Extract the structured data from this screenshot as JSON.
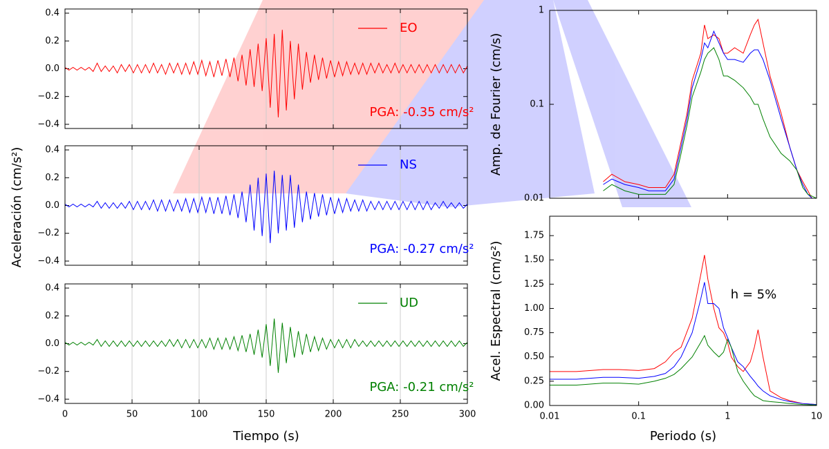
{
  "chart_data": [
    {
      "type": "line",
      "xlabel": "Tiempo (s)",
      "ylabel": "Aceleración (cm/s²)",
      "x": [
        0,
        3,
        6,
        9,
        12,
        15,
        18,
        21,
        24,
        27,
        30,
        33,
        36,
        39,
        42,
        45,
        48,
        51,
        54,
        57,
        60,
        63,
        66,
        69,
        72,
        75,
        78,
        81,
        84,
        87,
        90,
        93,
        96,
        99,
        102,
        105,
        108,
        111,
        114,
        117,
        120,
        123,
        126,
        129,
        132,
        135,
        138,
        141,
        144,
        147,
        150,
        153,
        156,
        159,
        162,
        165,
        168,
        171,
        174,
        177,
        180,
        183,
        186,
        189,
        192,
        195,
        198,
        201,
        204,
        207,
        210,
        213,
        216,
        219,
        222,
        225,
        228,
        231,
        234,
        237,
        240,
        243,
        246,
        249,
        252,
        255,
        258,
        261,
        264,
        267,
        270,
        273,
        276,
        279,
        282,
        285,
        288,
        291,
        294,
        297,
        300
      ],
      "xlim": [
        0,
        300
      ],
      "xticks": [
        0,
        50,
        100,
        150,
        200,
        250,
        300
      ],
      "grid": true,
      "ylim": [
        -0.43,
        0.43
      ],
      "yticks": [
        {
          "value": -0.4,
          "label": "−0.4"
        },
        {
          "value": -0.2,
          "label": "−0.2"
        },
        {
          "value": 0,
          "label": "0.0"
        },
        {
          "value": 0.2,
          "label": "0.2"
        },
        {
          "value": 0.4,
          "label": "0.4"
        }
      ],
      "series": [
        {
          "name": "EO",
          "color": "#ff0000",
          "annotation": "PGA: -0.35 cm/s²",
          "values": [
            0.01,
            -0.01,
            0.01,
            -0.01,
            0.01,
            -0.01,
            0.01,
            -0.02,
            0.04,
            -0.02,
            0.02,
            -0.02,
            0.02,
            -0.03,
            0.03,
            -0.02,
            0.03,
            -0.03,
            0.03,
            -0.03,
            0.03,
            -0.03,
            0.04,
            -0.03,
            0.03,
            -0.04,
            0.04,
            -0.03,
            0.04,
            -0.04,
            0.04,
            -0.04,
            0.05,
            -0.04,
            0.06,
            -0.05,
            0.05,
            -0.06,
            0.06,
            -0.05,
            0.07,
            -0.06,
            0.08,
            -0.09,
            0.1,
            -0.12,
            0.14,
            -0.13,
            0.18,
            -0.16,
            0.22,
            -0.28,
            0.25,
            -0.35,
            0.28,
            -0.3,
            0.2,
            -0.22,
            0.18,
            -0.15,
            0.12,
            -0.1,
            0.1,
            -0.08,
            0.08,
            -0.07,
            0.06,
            -0.06,
            0.05,
            -0.05,
            0.05,
            -0.04,
            0.04,
            -0.04,
            0.04,
            -0.04,
            0.04,
            -0.03,
            0.04,
            -0.03,
            0.03,
            -0.03,
            0.04,
            -0.03,
            0.03,
            -0.03,
            0.03,
            -0.03,
            0.03,
            -0.03,
            0.03,
            -0.03,
            0.03,
            -0.03,
            0.03,
            -0.03,
            0.03,
            -0.03,
            0.03,
            -0.03,
            0.02
          ]
        },
        {
          "name": "NS",
          "color": "#0000ff",
          "annotation": "PGA: -0.27 cm/s²",
          "values": [
            0.01,
            -0.01,
            0.01,
            -0.01,
            0.01,
            -0.01,
            0.01,
            -0.01,
            0.03,
            -0.02,
            0.02,
            -0.02,
            0.02,
            -0.02,
            0.02,
            -0.02,
            0.03,
            -0.03,
            0.03,
            -0.03,
            0.03,
            -0.03,
            0.04,
            -0.04,
            0.04,
            -0.04,
            0.04,
            -0.04,
            0.04,
            -0.04,
            0.05,
            -0.05,
            0.05,
            -0.05,
            0.06,
            -0.05,
            0.06,
            -0.06,
            0.06,
            -0.06,
            0.07,
            -0.07,
            0.08,
            -0.09,
            0.1,
            -0.12,
            0.15,
            -0.18,
            0.2,
            -0.22,
            0.23,
            -0.27,
            0.25,
            -0.2,
            0.22,
            -0.18,
            0.22,
            -0.16,
            0.15,
            -0.12,
            0.1,
            -0.1,
            0.09,
            -0.08,
            0.08,
            -0.07,
            0.06,
            -0.06,
            0.05,
            -0.05,
            0.05,
            -0.04,
            0.04,
            -0.04,
            0.04,
            -0.04,
            0.03,
            -0.03,
            0.03,
            -0.03,
            0.03,
            -0.03,
            0.03,
            -0.03,
            0.03,
            -0.03,
            0.03,
            -0.03,
            0.03,
            -0.03,
            0.03,
            -0.03,
            0.02,
            -0.02,
            0.03,
            -0.02,
            0.02,
            -0.02,
            0.02,
            -0.02,
            0.01
          ]
        },
        {
          "name": "UD",
          "color": "#008000",
          "annotation": "PGA: -0.21 cm/s²",
          "values": [
            0.01,
            -0.01,
            0.01,
            -0.01,
            0.01,
            -0.01,
            0.01,
            -0.01,
            0.03,
            -0.02,
            0.02,
            -0.02,
            0.02,
            -0.02,
            0.02,
            -0.02,
            0.02,
            -0.02,
            0.02,
            -0.02,
            0.02,
            -0.02,
            0.02,
            -0.02,
            0.02,
            -0.02,
            0.03,
            -0.02,
            0.03,
            -0.03,
            0.03,
            -0.03,
            0.03,
            -0.03,
            0.03,
            -0.03,
            0.04,
            -0.04,
            0.04,
            -0.04,
            0.04,
            -0.04,
            0.05,
            -0.05,
            0.06,
            -0.06,
            0.07,
            -0.08,
            0.1,
            -0.1,
            0.14,
            -0.16,
            0.18,
            -0.21,
            0.15,
            -0.14,
            0.12,
            -0.1,
            0.09,
            -0.08,
            0.07,
            -0.06,
            0.05,
            -0.05,
            0.04,
            -0.04,
            0.03,
            -0.03,
            0.03,
            -0.03,
            0.03,
            -0.03,
            0.03,
            -0.02,
            0.02,
            -0.02,
            0.02,
            -0.02,
            0.02,
            -0.02,
            0.02,
            -0.02,
            0.02,
            -0.02,
            0.02,
            -0.02,
            0.02,
            -0.02,
            0.02,
            -0.02,
            0.02,
            -0.02,
            0.02,
            -0.02,
            0.02,
            -0.02,
            0.02,
            -0.02,
            0.02,
            -0.02,
            0.01
          ]
        }
      ]
    },
    {
      "type": "line",
      "ylabel": "Amp. de Fourier (cm/s)",
      "xlog": true,
      "ylog": true,
      "x": [
        0.04,
        0.05,
        0.07,
        0.1,
        0.13,
        0.16,
        0.2,
        0.25,
        0.3,
        0.35,
        0.4,
        0.5,
        0.55,
        0.6,
        0.7,
        0.8,
        0.9,
        1,
        1.2,
        1.5,
        1.8,
        2,
        2.2,
        2.5,
        3,
        4,
        5,
        6,
        7,
        8,
        10
      ],
      "xlim": [
        0.01,
        10
      ],
      "xticks": [
        0.01,
        0.1,
        1,
        10
      ],
      "ylim": [
        0.01,
        1
      ],
      "yticks": [
        0.01,
        0.1,
        1
      ],
      "series": [
        {
          "color": "#ff0000",
          "values": [
            0.015,
            0.018,
            0.015,
            0.014,
            0.013,
            0.013,
            0.013,
            0.018,
            0.04,
            0.08,
            0.18,
            0.35,
            0.7,
            0.5,
            0.55,
            0.5,
            0.35,
            0.35,
            0.4,
            0.35,
            0.55,
            0.7,
            0.8,
            0.45,
            0.2,
            0.08,
            0.035,
            0.02,
            0.015,
            0.012,
            0.008
          ]
        },
        {
          "color": "#0000ff",
          "values": [
            0.014,
            0.016,
            0.014,
            0.013,
            0.012,
            0.012,
            0.012,
            0.016,
            0.035,
            0.07,
            0.15,
            0.3,
            0.45,
            0.4,
            0.6,
            0.45,
            0.35,
            0.3,
            0.3,
            0.28,
            0.35,
            0.38,
            0.38,
            0.3,
            0.18,
            0.07,
            0.035,
            0.02,
            0.014,
            0.011,
            0.009
          ]
        },
        {
          "color": "#008000",
          "values": [
            0.012,
            0.014,
            0.012,
            0.011,
            0.011,
            0.011,
            0.011,
            0.014,
            0.03,
            0.06,
            0.12,
            0.22,
            0.3,
            0.35,
            0.4,
            0.3,
            0.2,
            0.2,
            0.18,
            0.15,
            0.12,
            0.1,
            0.1,
            0.07,
            0.045,
            0.03,
            0.025,
            0.02,
            0.013,
            0.011,
            0.01
          ]
        }
      ]
    },
    {
      "type": "line",
      "xlabel": "Periodo (s)",
      "ylabel": "Acel. Espectral (cm/s²)",
      "annotation": "h = 5%",
      "xlog": true,
      "x": [
        0.01,
        0.02,
        0.04,
        0.06,
        0.1,
        0.15,
        0.2,
        0.25,
        0.3,
        0.4,
        0.5,
        0.55,
        0.6,
        0.7,
        0.8,
        0.9,
        1,
        1.1,
        1.3,
        1.5,
        1.8,
        2,
        2.2,
        2.5,
        3,
        4,
        5,
        7,
        10
      ],
      "xlim": [
        0.01,
        10
      ],
      "xticks": [
        0.01,
        0.1,
        1,
        10
      ],
      "ylim": [
        0,
        1.95
      ],
      "yticks": [
        {
          "value": 0,
          "label": "0.00"
        },
        {
          "value": 0.25,
          "label": "0.25"
        },
        {
          "value": 0.5,
          "label": "0.50"
        },
        {
          "value": 0.75,
          "label": "0.75"
        },
        {
          "value": 1,
          "label": "1.00"
        },
        {
          "value": 1.25,
          "label": "1.25"
        },
        {
          "value": 1.5,
          "label": "1.50"
        },
        {
          "value": 1.75,
          "label": "1.75"
        }
      ],
      "series": [
        {
          "color": "#ff0000",
          "values": [
            0.35,
            0.35,
            0.37,
            0.37,
            0.36,
            0.38,
            0.45,
            0.55,
            0.6,
            0.9,
            1.35,
            1.55,
            1.3,
            1.0,
            0.8,
            0.75,
            0.65,
            0.5,
            0.4,
            0.35,
            0.45,
            0.6,
            0.78,
            0.5,
            0.15,
            0.08,
            0.05,
            0.02,
            0.01
          ]
        },
        {
          "color": "#0000ff",
          "values": [
            0.27,
            0.27,
            0.29,
            0.29,
            0.28,
            0.3,
            0.33,
            0.4,
            0.5,
            0.75,
            1.1,
            1.27,
            1.05,
            1.05,
            1.0,
            0.8,
            0.7,
            0.6,
            0.45,
            0.4,
            0.3,
            0.25,
            0.2,
            0.15,
            0.1,
            0.06,
            0.04,
            0.02,
            0.01
          ]
        },
        {
          "color": "#008000",
          "values": [
            0.21,
            0.21,
            0.23,
            0.23,
            0.22,
            0.25,
            0.28,
            0.32,
            0.38,
            0.5,
            0.65,
            0.72,
            0.62,
            0.55,
            0.5,
            0.55,
            0.68,
            0.6,
            0.35,
            0.25,
            0.15,
            0.1,
            0.08,
            0.05,
            0.04,
            0.03,
            0.02,
            0.01,
            0.005
          ]
        }
      ]
    }
  ]
}
